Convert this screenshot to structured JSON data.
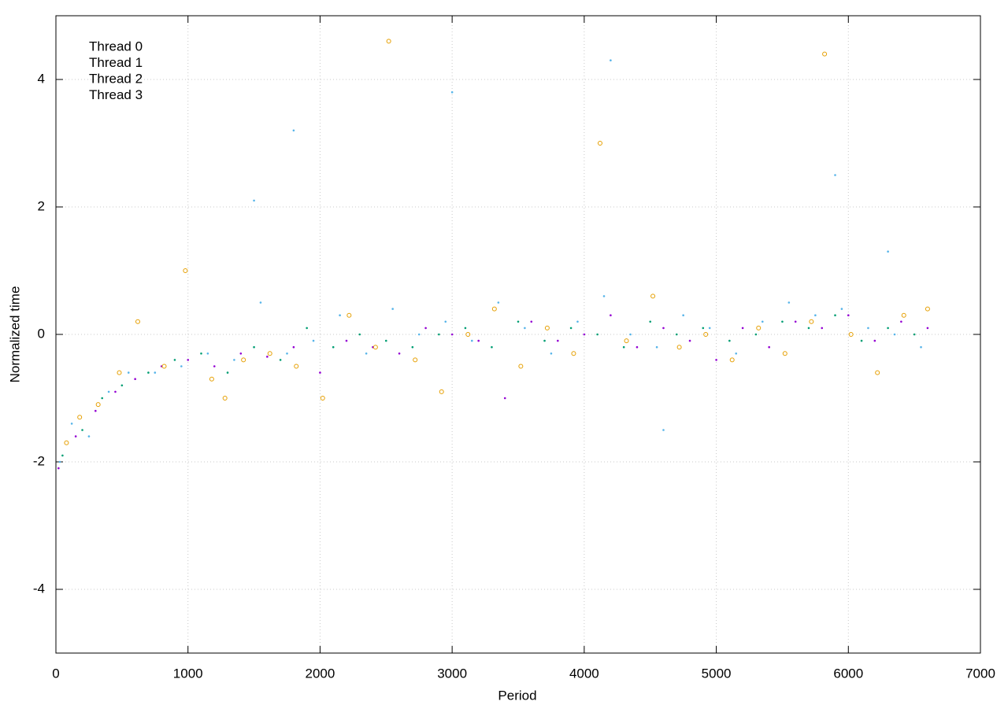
{
  "chart_data": {
    "type": "scatter",
    "xlabel": "Period",
    "ylabel": "Normalized time",
    "xlim": [
      0,
      7000
    ],
    "ylim": [
      -5,
      5
    ],
    "xticks": [
      0,
      1000,
      2000,
      3000,
      4000,
      5000,
      6000,
      7000
    ],
    "yticks": [
      -4,
      -2,
      0,
      2,
      4
    ],
    "grid": true,
    "legend": "upper-left",
    "series": [
      {
        "name": "Thread 0",
        "color": "#9400d3",
        "marker": "dot",
        "x": [
          20,
          150,
          300,
          450,
          600,
          800,
          1000,
          1200,
          1400,
          1600,
          1800,
          2000,
          2200,
          2400,
          2600,
          2800,
          3000,
          3200,
          3400,
          3600,
          3800,
          4000,
          4200,
          4400,
          4600,
          4800,
          5000,
          5200,
          5400,
          5600,
          5800,
          6000,
          6200,
          6400,
          6600
        ],
        "values": [
          -2.1,
          -1.6,
          -1.2,
          -0.9,
          -0.7,
          -0.5,
          -0.4,
          -0.5,
          -0.3,
          -0.35,
          -0.2,
          -0.6,
          -0.1,
          -0.2,
          -0.3,
          0.1,
          0,
          -0.1,
          -1.0,
          0.2,
          -0.1,
          0,
          0.3,
          -0.2,
          0.1,
          -0.1,
          -0.4,
          0.1,
          -0.2,
          0.2,
          0.1,
          0.3,
          -0.1,
          0.2,
          0.1
        ]
      },
      {
        "name": "Thread 1",
        "color": "#009e73",
        "marker": "dot",
        "x": [
          50,
          200,
          350,
          500,
          700,
          900,
          1100,
          1300,
          1500,
          1700,
          1900,
          2100,
          2300,
          2500,
          2700,
          2900,
          3100,
          3300,
          3500,
          3700,
          3900,
          4100,
          4300,
          4500,
          4700,
          4900,
          5100,
          5300,
          5500,
          5700,
          5900,
          6100,
          6300,
          6500
        ],
        "values": [
          -1.9,
          -1.5,
          -1.0,
          -0.8,
          -0.6,
          -0.4,
          -0.3,
          -0.6,
          -0.2,
          -0.4,
          0.1,
          -0.2,
          0.0,
          -0.1,
          -0.2,
          0.0,
          0.1,
          -0.2,
          0.2,
          -0.1,
          0.1,
          0.0,
          -0.2,
          0.2,
          0.0,
          0.1,
          -0.1,
          0.0,
          0.2,
          0.1,
          0.3,
          -0.1,
          0.1,
          0.0
        ]
      },
      {
        "name": "Thread 2",
        "color": "#56b4e9",
        "marker": "dot",
        "x": [
          30,
          120,
          250,
          400,
          550,
          750,
          950,
          1150,
          1350,
          1550,
          1750,
          1950,
          2150,
          2350,
          2550,
          2750,
          2950,
          3150,
          3350,
          3550,
          3750,
          3950,
          4150,
          4350,
          4550,
          4750,
          4950,
          5150,
          5350,
          5550,
          5750,
          5950,
          6150,
          6350,
          6550,
          1500,
          3000,
          4200,
          5900,
          6300,
          1800,
          4600
        ],
        "values": [
          -2.0,
          -1.4,
          -1.6,
          -0.9,
          -0.6,
          -0.6,
          -0.5,
          -0.3,
          -0.4,
          0.5,
          -0.3,
          -0.1,
          0.3,
          -0.3,
          0.4,
          0.0,
          0.2,
          -0.1,
          0.5,
          0.1,
          -0.3,
          0.2,
          0.6,
          0.0,
          -0.2,
          0.3,
          0.1,
          -0.3,
          0.2,
          0.5,
          0.3,
          0.4,
          0.1,
          0.0,
          -0.2,
          2.1,
          3.8,
          4.3,
          2.5,
          1.3,
          3.2,
          -1.5
        ]
      },
      {
        "name": "Thread 3",
        "color": "#e69f00",
        "marker": "circle",
        "x": [
          80,
          180,
          320,
          480,
          620,
          820,
          980,
          1180,
          1280,
          1420,
          1620,
          1820,
          2020,
          2220,
          2420,
          2520,
          2720,
          2920,
          3120,
          3320,
          3520,
          3720,
          3920,
          4120,
          4320,
          4520,
          4720,
          4920,
          5120,
          5320,
          5520,
          5720,
          5820,
          6020,
          6220,
          6420,
          6600
        ],
        "values": [
          -1.7,
          -1.3,
          -1.1,
          -0.6,
          0.2,
          -0.5,
          1.0,
          -0.7,
          -1.0,
          -0.4,
          -0.3,
          -0.5,
          -1.0,
          0.3,
          -0.2,
          4.6,
          -0.4,
          -0.9,
          0.0,
          0.4,
          -0.5,
          0.1,
          -0.3,
          3.0,
          -0.1,
          0.6,
          -0.2,
          0.0,
          -0.4,
          0.1,
          -0.3,
          0.2,
          4.4,
          0.0,
          -0.6,
          0.3,
          0.4
        ]
      }
    ]
  }
}
